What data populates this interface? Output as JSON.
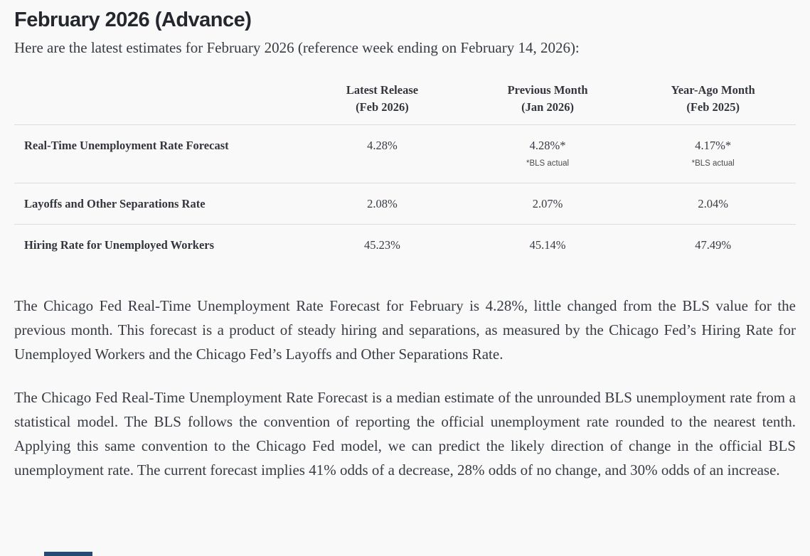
{
  "page": {
    "title": "February 2026 (Advance)",
    "intro": "Here are the latest estimates for February 2026 (reference week ending on February 14, 2026):"
  },
  "table": {
    "columns": [
      {
        "line1": "Latest Release",
        "line2": "(Feb 2026)"
      },
      {
        "line1": "Previous Month",
        "line2": "(Jan 2026)"
      },
      {
        "line1": "Year-Ago Month",
        "line2": "(Feb 2025)"
      }
    ],
    "rows": [
      {
        "label": "Real-Time Unemployment Rate Forecast",
        "values": [
          {
            "value": "4.28%",
            "note": ""
          },
          {
            "value": "4.28%*",
            "note": "*BLS actual"
          },
          {
            "value": "4.17%*",
            "note": "*BLS actual"
          }
        ]
      },
      {
        "label": "Layoffs and Other Separations Rate",
        "values": [
          {
            "value": "2.08%"
          },
          {
            "value": "2.07%"
          },
          {
            "value": "2.04%"
          }
        ]
      },
      {
        "label": "Hiring Rate for Unemployed Workers",
        "values": [
          {
            "value": "45.23%"
          },
          {
            "value": "45.14%"
          },
          {
            "value": "47.49%"
          }
        ]
      }
    ]
  },
  "paragraphs": [
    "The Chicago Fed Real-Time Unemployment Rate Forecast for February is 4.28%, little changed from the BLS value for the previous month. This forecast is a product of steady hiring and separations, as measured by the Chicago Fed’s Hiring Rate for Unemployed Workers and the Chicago Fed’s Layoffs and Other Separations Rate.",
    "The Chicago Fed Real-Time Unemployment Rate Forecast is a median estimate of the unrounded BLS unemployment rate from a statistical model. The BLS follows the convention of reporting the official unemployment rate rounded to the nearest tenth. Applying this same convention to the Chicago Fed model, we can predict the likely direction of change in the official BLS unemployment rate. The current forecast implies 41% odds of a decrease, 28% odds of no change, and 30% odds of an increase."
  ],
  "colors": {
    "background": "#f9f9f9",
    "heading_text": "#24272d",
    "body_text": "#373b42",
    "divider": "#dcdcdc",
    "note_gray": "#4b4b4b",
    "partial_element_navy": "#254a74"
  }
}
